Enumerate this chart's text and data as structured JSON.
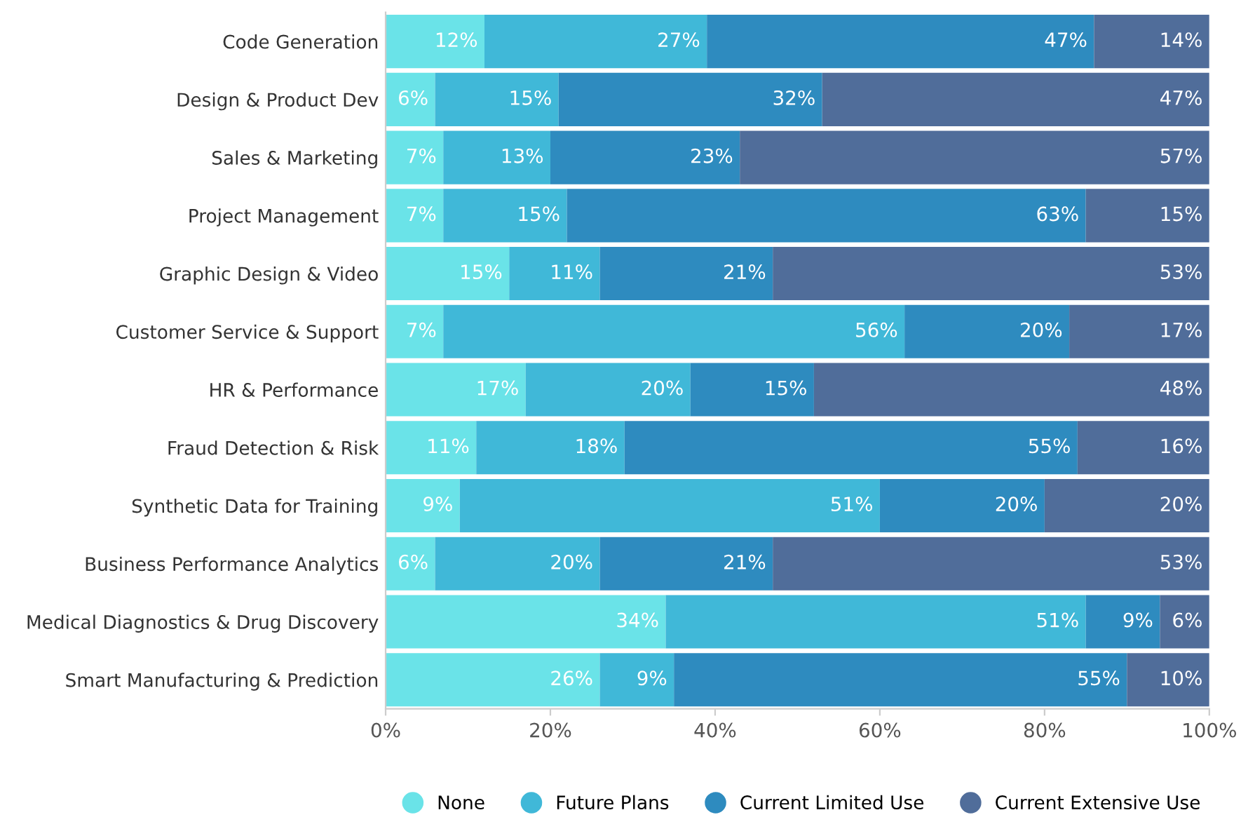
{
  "chart_data": {
    "type": "bar",
    "orientation": "horizontal",
    "stacked": true,
    "categories": [
      "Code Generation",
      "Design & Product Dev",
      "Sales & Marketing",
      "Project Management",
      "Graphic Design & Video",
      "Customer Service & Support",
      "HR & Performance",
      "Fraud Detection & Risk",
      "Synthetic Data for Training",
      "Business Performance Analytics",
      "Medical Diagnostics & Drug Discovery",
      "Smart Manufacturing & Prediction"
    ],
    "series": [
      {
        "name": "None",
        "color": "#6ae3e8",
        "values": [
          12,
          6,
          7,
          7,
          15,
          7,
          17,
          11,
          9,
          6,
          34,
          26
        ],
        "value_labels": [
          "12%",
          "6%",
          "7%",
          "7%",
          "15%",
          "7%",
          "17%",
          "11%",
          "9%",
          "6%",
          "34%",
          "26%"
        ]
      },
      {
        "name": "Future Plans",
        "color": "#40b8d8",
        "values": [
          27,
          15,
          13,
          15,
          11,
          56,
          20,
          18,
          51,
          20,
          51,
          9
        ],
        "value_labels": [
          "27%",
          "15%",
          "13%",
          "15%",
          "11%",
          "56%",
          "20%",
          "18%",
          "51%",
          "20%",
          "51%",
          "9%"
        ]
      },
      {
        "name": "Current Limited Use",
        "color": "#2e8bbf",
        "values": [
          47,
          32,
          23,
          63,
          21,
          20,
          15,
          55,
          20,
          21,
          9,
          55
        ],
        "value_labels": [
          "47%",
          "32%",
          "23%",
          "63%",
          "21%",
          "20%",
          "15%",
          "55%",
          "20%",
          "21%",
          "9%",
          "55%"
        ]
      },
      {
        "name": "Current Extensive Use",
        "color": "#506d9a",
        "values": [
          14,
          47,
          57,
          15,
          53,
          17,
          48,
          16,
          20,
          53,
          6,
          10
        ],
        "value_labels": [
          "14%",
          "47%",
          "57%",
          "15%",
          "53%",
          "17%",
          "48%",
          "16%",
          "20%",
          "53%",
          "6%",
          "10%"
        ]
      }
    ],
    "xlim": [
      0,
      100
    ],
    "xticks": [
      {
        "value": 0,
        "label": "0%"
      },
      {
        "value": 20,
        "label": "20%"
      },
      {
        "value": 40,
        "label": "40%"
      },
      {
        "value": 60,
        "label": "60%"
      },
      {
        "value": 80,
        "label": "80%"
      },
      {
        "value": 100,
        "label": "100%"
      }
    ],
    "grid": false,
    "legend": "bottom",
    "marker": "circle"
  }
}
